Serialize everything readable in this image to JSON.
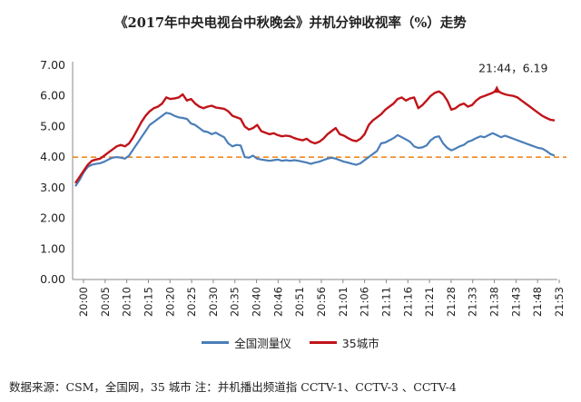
{
  "chart_data": {
    "type": "line",
    "title": "《2017年中央电视台中秋晚会》并机分钟收视率（%）走势",
    "ylim": [
      0,
      7
    ],
    "y_ticks": [
      "0.00",
      "1.00",
      "2.00",
      "3.00",
      "4.00",
      "5.00",
      "6.00",
      "7.00"
    ],
    "x_tick_labels": [
      "20:00",
      "20:05",
      "20:10",
      "20:15",
      "20:20",
      "20:25",
      "20:30",
      "20:35",
      "20:40",
      "20:46",
      "20:51",
      "20:56",
      "21:01",
      "21:06",
      "21:11",
      "21:16",
      "21:21",
      "21:28",
      "21:33",
      "21:38",
      "21:43",
      "21:48",
      "21:53"
    ],
    "reference_line": {
      "y": 4.0,
      "color": "#f08a24",
      "style": "dashed"
    },
    "annotation": {
      "text": "21:44，6.19",
      "x_index": 102,
      "y": 6.19
    },
    "series": [
      {
        "name": "全国测量仪",
        "color": "#4a7eb8",
        "values": [
          3.05,
          3.25,
          3.5,
          3.68,
          3.75,
          3.78,
          3.8,
          3.85,
          3.92,
          3.98,
          4.0,
          3.98,
          3.95,
          4.05,
          4.25,
          4.45,
          4.65,
          4.85,
          5.05,
          5.15,
          5.25,
          5.35,
          5.45,
          5.42,
          5.35,
          5.3,
          5.28,
          5.25,
          5.1,
          5.05,
          4.95,
          4.85,
          4.82,
          4.75,
          4.8,
          4.72,
          4.65,
          4.45,
          4.35,
          4.4,
          4.38,
          4.0,
          3.98,
          4.05,
          3.95,
          3.92,
          3.9,
          3.88,
          3.9,
          3.92,
          3.88,
          3.9,
          3.88,
          3.9,
          3.88,
          3.85,
          3.82,
          3.78,
          3.82,
          3.85,
          3.9,
          3.95,
          3.98,
          3.95,
          3.9,
          3.85,
          3.82,
          3.78,
          3.75,
          3.8,
          3.9,
          4.0,
          4.1,
          4.2,
          4.45,
          4.48,
          4.55,
          4.62,
          4.72,
          4.65,
          4.58,
          4.5,
          4.35,
          4.3,
          4.32,
          4.38,
          4.55,
          4.65,
          4.68,
          4.45,
          4.3,
          4.22,
          4.28,
          4.35,
          4.4,
          4.5,
          4.55,
          4.62,
          4.68,
          4.65,
          4.72,
          4.78,
          4.72,
          4.65,
          4.7,
          4.65,
          4.6,
          4.55,
          4.5,
          4.45,
          4.4,
          4.35,
          4.3,
          4.28,
          4.2,
          4.1,
          4.05
        ]
      },
      {
        "name": "35城市",
        "color": "#c0141a",
        "values": [
          3.15,
          3.35,
          3.55,
          3.75,
          3.88,
          3.92,
          3.95,
          4.05,
          4.15,
          4.25,
          4.35,
          4.4,
          4.35,
          4.45,
          4.65,
          4.9,
          5.15,
          5.35,
          5.5,
          5.6,
          5.65,
          5.75,
          5.95,
          5.9,
          5.92,
          5.95,
          6.05,
          5.85,
          5.9,
          5.75,
          5.65,
          5.6,
          5.65,
          5.68,
          5.62,
          5.6,
          5.58,
          5.5,
          5.35,
          5.3,
          5.25,
          5.0,
          4.9,
          4.95,
          5.05,
          4.85,
          4.8,
          4.75,
          4.78,
          4.72,
          4.68,
          4.7,
          4.68,
          4.62,
          4.58,
          4.55,
          4.6,
          4.5,
          4.45,
          4.5,
          4.6,
          4.75,
          4.85,
          4.95,
          4.75,
          4.7,
          4.62,
          4.55,
          4.52,
          4.6,
          4.75,
          5.05,
          5.2,
          5.3,
          5.4,
          5.55,
          5.65,
          5.75,
          5.9,
          5.95,
          5.85,
          5.92,
          5.95,
          5.6,
          5.7,
          5.85,
          6.0,
          6.1,
          6.15,
          6.05,
          5.85,
          5.55,
          5.6,
          5.7,
          5.75,
          5.65,
          5.7,
          5.85,
          5.95,
          6.0,
          6.05,
          6.1,
          6.19,
          6.1,
          6.05,
          6.02,
          6.0,
          5.95,
          5.85,
          5.75,
          5.65,
          5.55,
          5.45,
          5.35,
          5.28,
          5.22,
          5.2
        ]
      }
    ]
  },
  "footer": "数据来源：CSM，全国网，35 城市 注：并机播出频道指 CCTV-1、CCTV-3 、CCTV-4"
}
